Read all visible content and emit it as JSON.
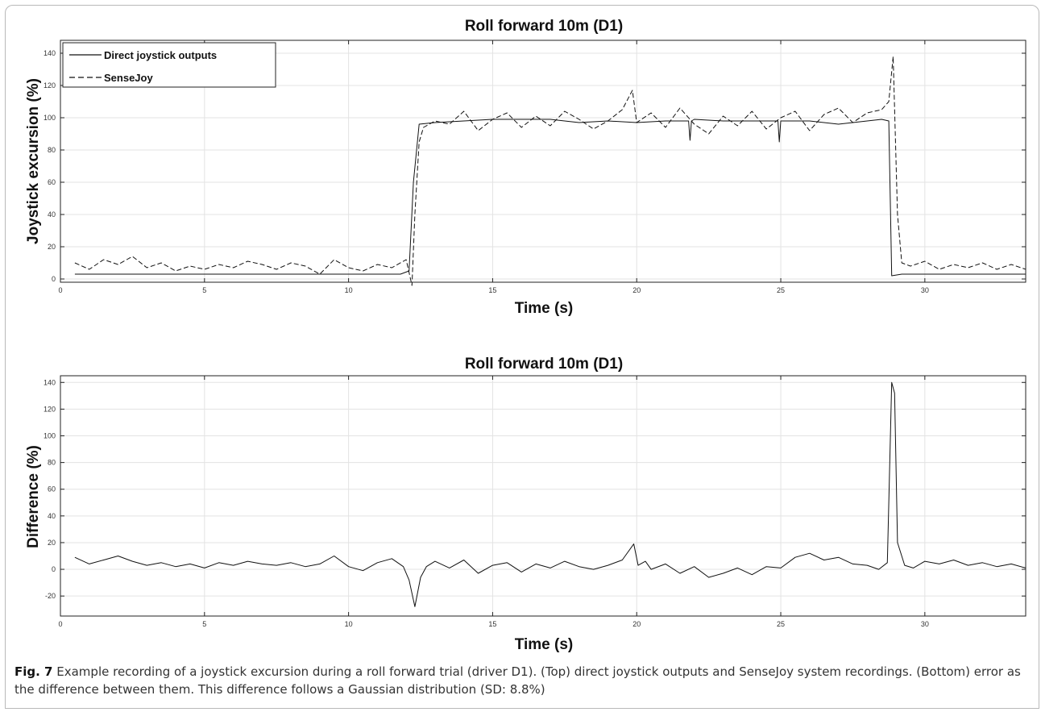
{
  "caption": {
    "label": "Fig. 7",
    "text": "Example recording of a joystick excursion during a roll forward trial (driver D1). (Top) direct joystick outputs and SenseJoy system recordings. (Bottom) error as the difference between them. This difference follows a Gaussian distribution (SD: 8.8%)"
  },
  "chart_data": [
    {
      "type": "line",
      "title": "Roll forward 10m (D1)",
      "xlabel": "Time (s)",
      "ylabel": "Joystick excursion (%)",
      "xlim": [
        0,
        33.5
      ],
      "ylim": [
        -2,
        148
      ],
      "xticks": [
        0,
        5,
        10,
        15,
        20,
        25,
        30
      ],
      "yticks": [
        0,
        20,
        40,
        60,
        80,
        100,
        120,
        140
      ],
      "grid": true,
      "legend": "top-left",
      "series": [
        {
          "name": "Direct joystick outputs",
          "style": "solid",
          "x": [
            0.5,
            11.8,
            12.1,
            12.25,
            12.45,
            13,
            14,
            15,
            16,
            17,
            18,
            19,
            20,
            21,
            21.8,
            21.85,
            21.9,
            22,
            23,
            24,
            24.9,
            24.95,
            25,
            26,
            27,
            28,
            28.5,
            28.75,
            28.85,
            29.2,
            33.5
          ],
          "y": [
            3,
            3,
            5,
            60,
            96,
            97,
            98,
            99,
            99,
            99,
            97,
            98,
            97,
            98,
            98,
            86,
            98,
            99,
            98,
            98,
            98,
            85,
            98,
            98,
            96,
            98,
            99,
            98,
            2,
            3,
            3
          ]
        },
        {
          "name": "SenseJoy",
          "style": "dashed",
          "x": [
            0.5,
            1,
            1.5,
            2,
            2.5,
            3,
            3.5,
            4,
            4.5,
            5,
            5.5,
            6,
            6.5,
            7,
            7.5,
            8,
            8.5,
            9,
            9.5,
            10,
            10.5,
            11,
            11.5,
            12,
            12.2,
            12.3,
            12.45,
            12.6,
            13,
            13.5,
            14,
            14.5,
            15,
            15.5,
            16,
            16.5,
            17,
            17.5,
            18,
            18.5,
            19,
            19.5,
            19.85,
            20,
            20.5,
            21,
            21.5,
            22,
            22.5,
            23,
            23.5,
            24,
            24.5,
            25,
            25.5,
            26,
            26.5,
            27,
            27.5,
            28,
            28.5,
            28.75,
            28.9,
            29.05,
            29.2,
            29.5,
            30,
            30.5,
            31,
            31.5,
            32,
            32.5,
            33,
            33.5
          ],
          "y": [
            10,
            6,
            12,
            9,
            14,
            7,
            10,
            5,
            8,
            6,
            9,
            7,
            11,
            9,
            6,
            10,
            8,
            3,
            12,
            7,
            5,
            9,
            7,
            12,
            -4,
            40,
            85,
            94,
            98,
            96,
            104,
            92,
            99,
            103,
            94,
            101,
            95,
            104,
            99,
            93,
            98,
            105,
            117,
            97,
            103,
            94,
            106,
            96,
            90,
            101,
            95,
            104,
            93,
            100,
            104,
            92,
            102,
            106,
            97,
            103,
            105,
            110,
            138,
            40,
            10,
            8,
            11,
            6,
            9,
            7,
            10,
            6,
            9,
            6
          ]
        }
      ]
    },
    {
      "type": "line",
      "title": "Roll forward 10m (D1)",
      "xlabel": "Time (s)",
      "ylabel": "Difference (%)",
      "xlim": [
        0,
        33.5
      ],
      "ylim": [
        -35,
        145
      ],
      "xticks": [
        0,
        5,
        10,
        15,
        20,
        25,
        30
      ],
      "yticks": [
        -20,
        0,
        20,
        40,
        60,
        80,
        100,
        120,
        140
      ],
      "grid": true,
      "series": [
        {
          "name": "Difference",
          "style": "solid",
          "x": [
            0.5,
            1,
            1.5,
            2,
            2.5,
            3,
            3.5,
            4,
            4.5,
            5,
            5.5,
            6,
            6.5,
            7,
            7.5,
            8,
            8.5,
            9,
            9.5,
            10,
            10.5,
            11,
            11.5,
            11.9,
            12.1,
            12.3,
            12.5,
            12.7,
            13,
            13.5,
            14,
            14.5,
            15,
            15.5,
            16,
            16.5,
            17,
            17.5,
            18,
            18.5,
            19,
            19.5,
            19.9,
            20.05,
            20.3,
            20.5,
            21,
            21.5,
            22,
            22.5,
            23,
            23.5,
            24,
            24.5,
            25,
            25.5,
            26,
            26.5,
            27,
            27.5,
            28,
            28.4,
            28.7,
            28.85,
            28.95,
            29.05,
            29.3,
            29.6,
            30,
            30.5,
            31,
            31.5,
            32,
            32.5,
            33,
            33.5
          ],
          "y": [
            9,
            4,
            7,
            10,
            6,
            3,
            5,
            2,
            4,
            1,
            5,
            3,
            6,
            4,
            3,
            5,
            2,
            4,
            10,
            2,
            -1,
            5,
            8,
            2,
            -8,
            -28,
            -6,
            2,
            6,
            1,
            7,
            -3,
            3,
            5,
            -2,
            4,
            1,
            6,
            2,
            0,
            3,
            7,
            19,
            3,
            6,
            0,
            4,
            -3,
            2,
            -6,
            -3,
            1,
            -4,
            2,
            1,
            9,
            12,
            7,
            9,
            4,
            3,
            0,
            5,
            140,
            132,
            20,
            3,
            1,
            6,
            4,
            7,
            3,
            5,
            2,
            4,
            1
          ]
        }
      ]
    }
  ]
}
